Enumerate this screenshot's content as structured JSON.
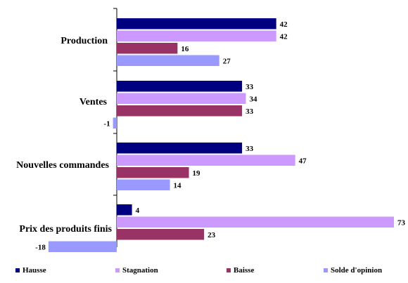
{
  "chart_data": {
    "type": "bar",
    "orientation": "horizontal",
    "categories": [
      "Production",
      "Ventes",
      "Nouvelles commandes",
      "Prix des produits finis"
    ],
    "series": [
      {
        "name": "Hausse",
        "color": "#000080",
        "values": [
          42,
          33,
          33,
          4
        ]
      },
      {
        "name": "Stagnation",
        "color": "#CC99FF",
        "values": [
          42,
          34,
          47,
          73
        ]
      },
      {
        "name": "Baisse",
        "color": "#993366",
        "values": [
          16,
          33,
          19,
          23
        ]
      },
      {
        "name": "Solde d'opinion",
        "color": "#9999FF",
        "values": [
          27,
          -1,
          14,
          -18
        ]
      }
    ],
    "xlim": [
      -18,
      73
    ],
    "value_labels": true,
    "title": "",
    "xlabel": "",
    "ylabel": "",
    "legend_position": "bottom",
    "grid": false
  }
}
